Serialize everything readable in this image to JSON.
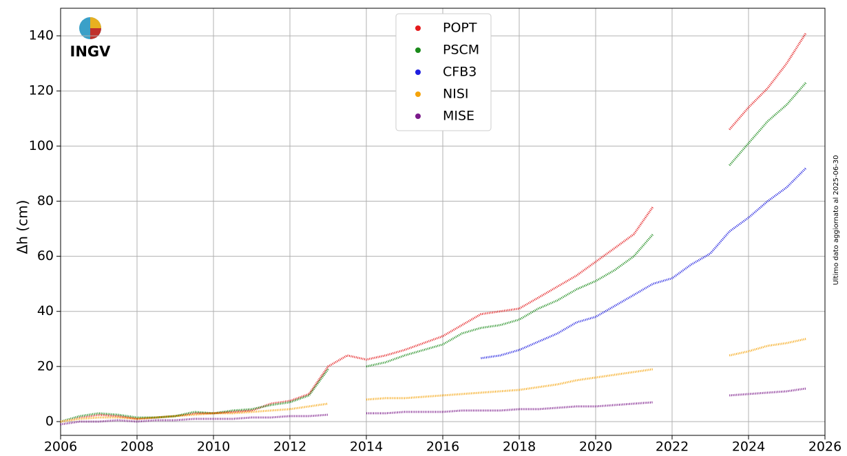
{
  "chart_data": {
    "type": "line",
    "logo": "INGV",
    "ylabel": "Δh (cm)",
    "side_note": "Ultimo dato aggiornato al 2025-06-30",
    "x": [
      2006.0,
      2006.5,
      2007.0,
      2007.5,
      2008.0,
      2008.5,
      2009.0,
      2009.5,
      2010.0,
      2010.5,
      2011.0,
      2011.5,
      2012.0,
      2012.5,
      2013.0,
      2013.5,
      2014.0,
      2014.5,
      2015.0,
      2015.5,
      2016.0,
      2016.5,
      2017.0,
      2017.5,
      2018.0,
      2018.5,
      2019.0,
      2019.5,
      2020.0,
      2020.5,
      2021.0,
      2021.5,
      2022.0,
      2022.5,
      2023.0,
      2023.5,
      2024.0,
      2024.5,
      2025.0,
      2025.5
    ],
    "series": [
      {
        "name": "POPT",
        "color": "#e41a1c",
        "values": [
          0,
          1.5,
          2.5,
          2,
          1,
          1.5,
          2,
          3,
          3,
          3.5,
          4,
          6.5,
          7.5,
          10,
          20,
          24,
          22.5,
          24,
          26,
          28.5,
          31,
          35,
          39,
          40,
          41,
          45,
          49,
          53,
          58,
          63,
          68,
          78,
          null,
          null,
          null,
          106,
          114,
          121,
          130,
          141
        ]
      },
      {
        "name": "PSCM",
        "color": "#1a8a1a",
        "values": [
          0,
          2,
          3,
          2.5,
          1.5,
          1.5,
          2,
          3.5,
          3,
          4,
          4.5,
          6,
          7,
          9.5,
          19,
          null,
          20,
          21.5,
          24,
          26,
          28,
          32,
          34,
          35,
          37,
          41,
          44,
          48,
          51,
          55,
          60,
          68,
          null,
          null,
          null,
          93,
          101,
          109,
          115,
          123
        ]
      },
      {
        "name": "CFB3",
        "color": "#1f1fe0",
        "values": [
          null,
          null,
          null,
          null,
          null,
          null,
          null,
          null,
          null,
          null,
          null,
          null,
          null,
          null,
          null,
          null,
          null,
          null,
          null,
          null,
          null,
          null,
          23,
          24,
          26,
          29,
          32,
          36,
          38,
          42,
          46,
          50,
          52,
          57,
          61,
          69,
          74,
          80,
          85,
          92
        ]
      },
      {
        "name": "NISI",
        "color": "#f5a30a",
        "values": [
          0,
          1,
          1.5,
          1.5,
          1,
          1.5,
          2,
          2.5,
          3,
          3,
          3.5,
          4,
          4.5,
          5.5,
          6.5,
          null,
          8,
          8.5,
          8.5,
          9,
          9.5,
          10,
          10.5,
          11,
          11.5,
          12.5,
          13.5,
          15,
          16,
          17,
          18,
          19,
          null,
          null,
          null,
          24,
          25.5,
          27.5,
          28.5,
          30
        ]
      },
      {
        "name": "MISE",
        "color": "#7b1a8a",
        "values": [
          -1,
          0,
          0,
          0.5,
          0,
          0.5,
          0.5,
          1,
          1,
          1,
          1.5,
          1.5,
          2,
          2,
          2.5,
          null,
          3,
          3,
          3.5,
          3.5,
          3.5,
          4,
          4,
          4,
          4.5,
          4.5,
          5,
          5.5,
          5.5,
          6,
          6.5,
          7,
          null,
          null,
          null,
          9.5,
          10,
          10.5,
          11,
          12
        ]
      }
    ],
    "xlim": [
      2006,
      2026
    ],
    "xticks": [
      2006,
      2008,
      2010,
      2012,
      2014,
      2016,
      2018,
      2020,
      2022,
      2024,
      2026
    ],
    "ylim": [
      -5,
      150
    ],
    "yticks": [
      0,
      20,
      40,
      60,
      80,
      100,
      120,
      140
    ],
    "grid": true
  }
}
